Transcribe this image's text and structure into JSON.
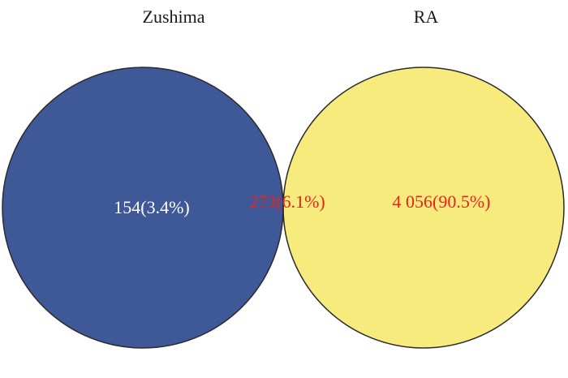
{
  "venn": {
    "sets": [
      {
        "name": "Zushima",
        "fill": "#3f5897",
        "label_color": "#ffffff"
      },
      {
        "name": "RA",
        "fill": "#f8eb7e",
        "label_color": "#e8231e"
      }
    ],
    "regions": {
      "left_only": {
        "text": "154(3.4%)",
        "count": 154,
        "percent": 3.4,
        "color": "#ffffff"
      },
      "overlap": {
        "text": "273(6.1%)",
        "count": 273,
        "percent": 6.1,
        "color": "#e8231e",
        "fill": "#cfc27c"
      },
      "right_only": {
        "text": "4 056(90.5%)",
        "count": 4056,
        "percent": 90.5,
        "color": "#e8231e"
      }
    },
    "outline_color": "#2b2b2b"
  }
}
